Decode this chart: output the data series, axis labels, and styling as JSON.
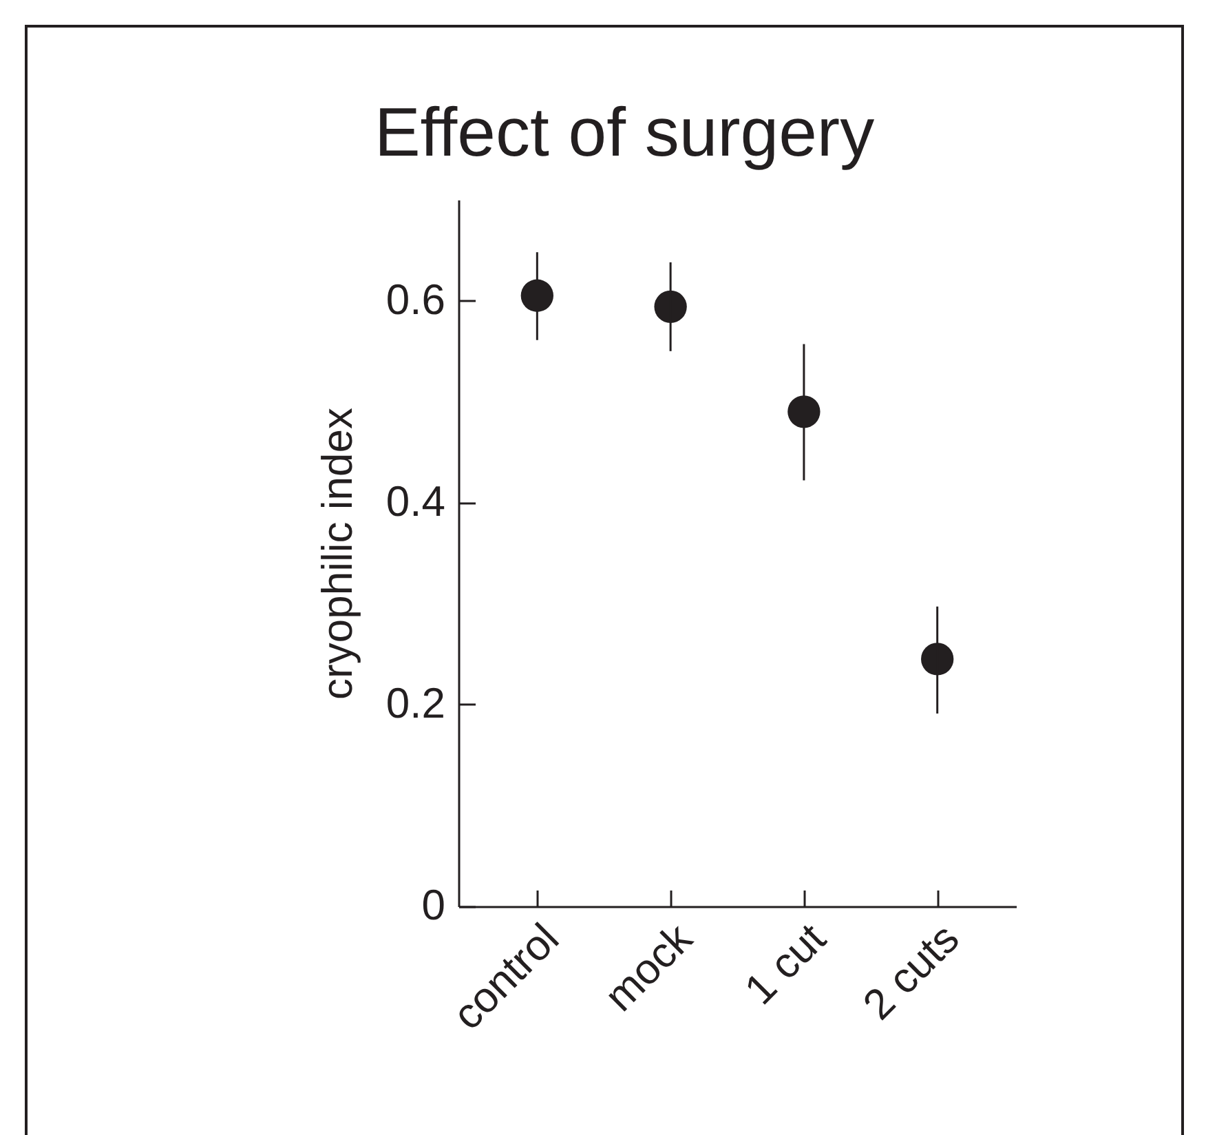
{
  "chart_data": {
    "type": "scatter",
    "title": "Effect of surgery",
    "ylabel": "cryophilic index",
    "categories": [
      "control",
      "mock",
      "1 cut",
      "2 cuts"
    ],
    "values": [
      0.605,
      0.594,
      0.49,
      0.245
    ],
    "errors": [
      [
        0.561,
        0.648
      ],
      [
        0.55,
        0.638
      ],
      [
        0.422,
        0.557
      ],
      [
        0.191,
        0.297
      ]
    ],
    "color": "#231f20",
    "marker": "circle",
    "ylim": [
      0,
      0.7
    ],
    "yticks": [
      0,
      0.2,
      0.4,
      0.6
    ],
    "grid": false
  }
}
